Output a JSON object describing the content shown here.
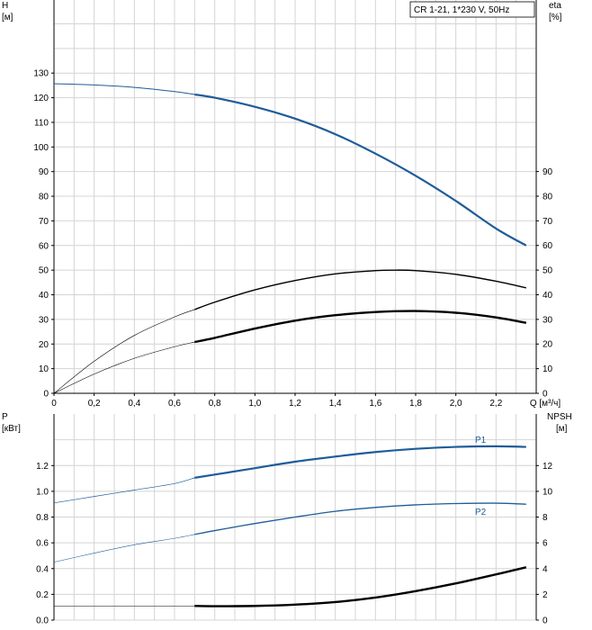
{
  "chart_data": [
    {
      "type": "line",
      "title": "CR 1-21, 1*230 V, 50Hz",
      "xlabel": "Q [м³/ч]",
      "x_axis_label": "Q",
      "x_axis_unit": "[м³/ч]",
      "xlim": [
        0,
        2.4
      ],
      "x_ticks": [
        "0",
        "0,2",
        "0,4",
        "0,6",
        "0,8",
        "1,0",
        "1,2",
        "1,4",
        "1,6",
        "1,8",
        "2,0",
        "2,2"
      ],
      "left_axis": {
        "label": "H",
        "unit": "[м]",
        "ylim": [
          0,
          130
        ],
        "ticks": [
          "0",
          "10",
          "20",
          "30",
          "40",
          "50",
          "60",
          "70",
          "80",
          "90",
          "100",
          "110",
          "120",
          "130"
        ]
      },
      "right_axis": {
        "label": "eta",
        "unit": "[%]",
        "ylim": [
          0,
          90
        ],
        "ticks": [
          "0",
          "10",
          "20",
          "30",
          "40",
          "50",
          "60",
          "70",
          "80",
          "90"
        ]
      },
      "grid": true,
      "series": [
        {
          "name": "",
          "axis": "left",
          "color": "#1f5c99",
          "x": [
            0,
            0.2,
            0.4,
            0.6,
            0.7,
            0.8,
            1.0,
            1.2,
            1.4,
            1.6,
            1.8,
            2.0,
            2.2,
            2.35
          ],
          "y": [
            125.7,
            125.2,
            124.2,
            122.5,
            121.3,
            120.0,
            116.3,
            111.5,
            105.2,
            97.3,
            88.3,
            78.1,
            66.9,
            60.0
          ]
        },
        {
          "name": "",
          "axis": "left",
          "color": "#000000",
          "x": [
            0,
            0.2,
            0.4,
            0.6,
            0.7,
            0.8,
            1.0,
            1.2,
            1.4,
            1.6,
            1.7,
            1.8,
            2.0,
            2.2,
            2.35
          ],
          "y": [
            0,
            13.0,
            23.5,
            31.0,
            34.0,
            37.0,
            42.0,
            45.8,
            48.5,
            49.8,
            50.0,
            49.8,
            48.3,
            45.5,
            42.8
          ]
        },
        {
          "name": "",
          "axis": "left",
          "color": "#000000",
          "x": [
            0,
            0.2,
            0.4,
            0.6,
            0.7,
            0.8,
            1.0,
            1.2,
            1.4,
            1.6,
            1.8,
            2.0,
            2.2,
            2.35
          ],
          "y": [
            0,
            7.8,
            14.2,
            18.9,
            20.8,
            22.5,
            26.3,
            29.5,
            31.7,
            33.0,
            33.4,
            32.7,
            30.8,
            28.6
          ]
        }
      ]
    },
    {
      "type": "line",
      "title": "",
      "xlabel": "",
      "xlim": [
        0,
        2.4
      ],
      "left_axis": {
        "label": "P",
        "unit": "[кВт]",
        "ylim": [
          0,
          1.4
        ],
        "ticks": [
          "0.0",
          "0.2",
          "0.4",
          "0.6",
          "0.8",
          "1.0",
          "1.2"
        ]
      },
      "right_axis": {
        "label": "NPSH",
        "unit": "[м]",
        "ylim": [
          0,
          14
        ],
        "ticks": [
          "0",
          "2",
          "4",
          "6",
          "8",
          "10",
          "12"
        ]
      },
      "grid": true,
      "series": [
        {
          "name": "P1",
          "axis": "left",
          "color": "#1f5c99",
          "x": [
            0,
            0.2,
            0.4,
            0.6,
            0.7,
            0.8,
            1.0,
            1.2,
            1.4,
            1.6,
            1.8,
            2.0,
            2.2,
            2.35
          ],
          "y": [
            0.91,
            0.96,
            1.01,
            1.06,
            1.105,
            1.13,
            1.18,
            1.23,
            1.27,
            1.305,
            1.33,
            1.345,
            1.35,
            1.345
          ]
        },
        {
          "name": "P2",
          "axis": "left",
          "color": "#1f5c99",
          "x": [
            0,
            0.2,
            0.4,
            0.6,
            0.7,
            0.8,
            1.0,
            1.2,
            1.4,
            1.6,
            1.8,
            2.0,
            2.2,
            2.35
          ],
          "y": [
            0.45,
            0.52,
            0.585,
            0.635,
            0.665,
            0.695,
            0.75,
            0.8,
            0.845,
            0.875,
            0.895,
            0.905,
            0.908,
            0.9
          ]
        },
        {
          "name": "",
          "axis": "right",
          "color": "#000000",
          "x": [
            0,
            0.2,
            0.4,
            0.6,
            0.7,
            0.8,
            1.0,
            1.2,
            1.4,
            1.6,
            1.8,
            2.0,
            2.2,
            2.35
          ],
          "y": [
            1.1,
            1.1,
            1.1,
            1.1,
            1.1,
            1.08,
            1.1,
            1.2,
            1.4,
            1.75,
            2.25,
            2.85,
            3.55,
            4.1
          ]
        }
      ]
    }
  ]
}
